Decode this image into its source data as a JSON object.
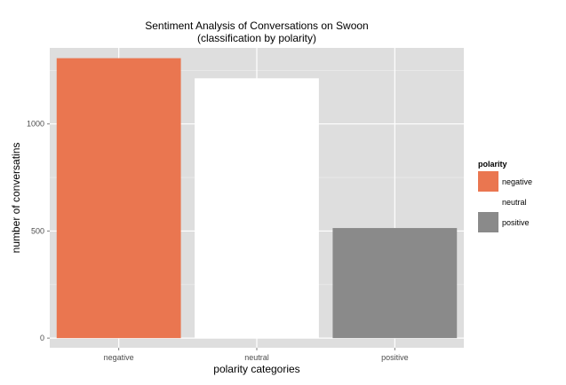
{
  "chart_data": {
    "type": "bar",
    "title": "Sentiment Analysis of Conversations on Swoon",
    "subtitle": "(classification by polarity)",
    "xlabel": "polarity categories",
    "ylabel": "number of conversatins",
    "categories": [
      "negative",
      "neutral",
      "positive"
    ],
    "values": [
      1307,
      1213,
      514
    ],
    "colors": [
      "#EA7650",
      "#FFFFFF",
      "#8A8A8A"
    ],
    "ylim": [
      -45,
      1355
    ],
    "yticks": [
      0,
      500,
      1000
    ],
    "grid": true,
    "background": "#DEDEDE",
    "legend": {
      "position": "right",
      "title": "polarity",
      "entries": [
        {
          "label": "negative",
          "color": "#EA7650"
        },
        {
          "label": "neutral",
          "color": "#FFFFFF"
        },
        {
          "label": "positive",
          "color": "#8A8A8A"
        }
      ]
    }
  }
}
